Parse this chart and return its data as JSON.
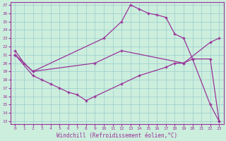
{
  "xlabel": "Windchill (Refroidissement éolien,°C)",
  "ylabel": "",
  "background_color": "#cceedd",
  "grid_color": "#99cccc",
  "line_color": "#993399",
  "ylim": [
    13,
    27
  ],
  "xlim": [
    0,
    23
  ],
  "yticks": [
    13,
    14,
    15,
    16,
    17,
    18,
    19,
    20,
    21,
    22,
    23,
    24,
    25,
    26,
    27
  ],
  "xticks": [
    0,
    1,
    2,
    3,
    4,
    5,
    6,
    7,
    8,
    9,
    10,
    11,
    12,
    13,
    14,
    15,
    16,
    17,
    18,
    19,
    20,
    21,
    22,
    23
  ],
  "line1_x": [
    0,
    1,
    2,
    10,
    12,
    13,
    14,
    15,
    16,
    17,
    18,
    19,
    20,
    22,
    23
  ],
  "line1_y": [
    21.5,
    20.0,
    19.0,
    23.0,
    25.0,
    27.0,
    26.5,
    26.0,
    25.8,
    25.5,
    23.5,
    23.0,
    20.5,
    15.0,
    13.0
  ],
  "line2_x": [
    0,
    2,
    9,
    12,
    19,
    22,
    23
  ],
  "line2_y": [
    21.0,
    19.0,
    20.0,
    21.5,
    20.0,
    22.5,
    23.0
  ],
  "line3_x": [
    0,
    2,
    3,
    4,
    5,
    6,
    7,
    8,
    9,
    12,
    14,
    17,
    18,
    19,
    20,
    22,
    23
  ],
  "line3_y": [
    21.0,
    18.5,
    18.0,
    17.5,
    17.0,
    16.5,
    16.2,
    15.5,
    16.0,
    17.5,
    18.5,
    19.5,
    20.0,
    20.0,
    20.5,
    20.5,
    13.0
  ]
}
